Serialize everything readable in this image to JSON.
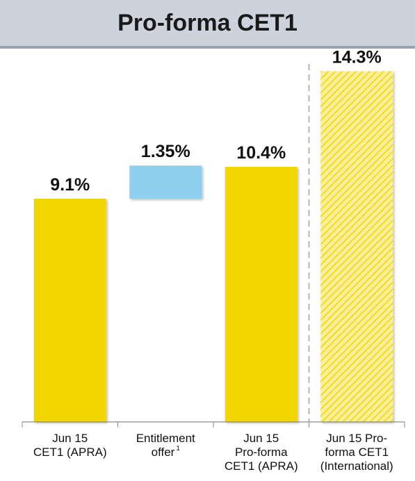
{
  "chart_data": {
    "type": "bar",
    "title": "Pro-forma CET1",
    "categories": [
      [
        "Jun 15",
        "CET1 (APRA)"
      ],
      [
        "Entitlement",
        "offer"
      ],
      [
        "Jun 15",
        "Pro-forma",
        "CET1 (APRA)"
      ],
      [
        "Jun 15 Pro-",
        "forma CET1",
        "(International)"
      ]
    ],
    "category_footnotes": [
      "",
      "1",
      "",
      ""
    ],
    "bars": [
      {
        "kind": "base",
        "from": 0,
        "to": 9.1,
        "label": "9.1%",
        "color": "#f2d600",
        "pattern": "solid"
      },
      {
        "kind": "floating",
        "from": 9.1,
        "to": 10.45,
        "label": "1.35%",
        "color": "#8fcfef",
        "pattern": "solid"
      },
      {
        "kind": "base",
        "from": 0,
        "to": 10.4,
        "label": "10.4%",
        "color": "#f2d600",
        "pattern": "solid"
      },
      {
        "kind": "base",
        "from": 0,
        "to": 14.3,
        "label": "14.3%",
        "color": "#f2d600",
        "pattern": "hatched"
      }
    ],
    "ylim": [
      0,
      15.5
    ],
    "grid": false,
    "separator_before_index": 3,
    "xlabel": "",
    "ylabel": ""
  }
}
